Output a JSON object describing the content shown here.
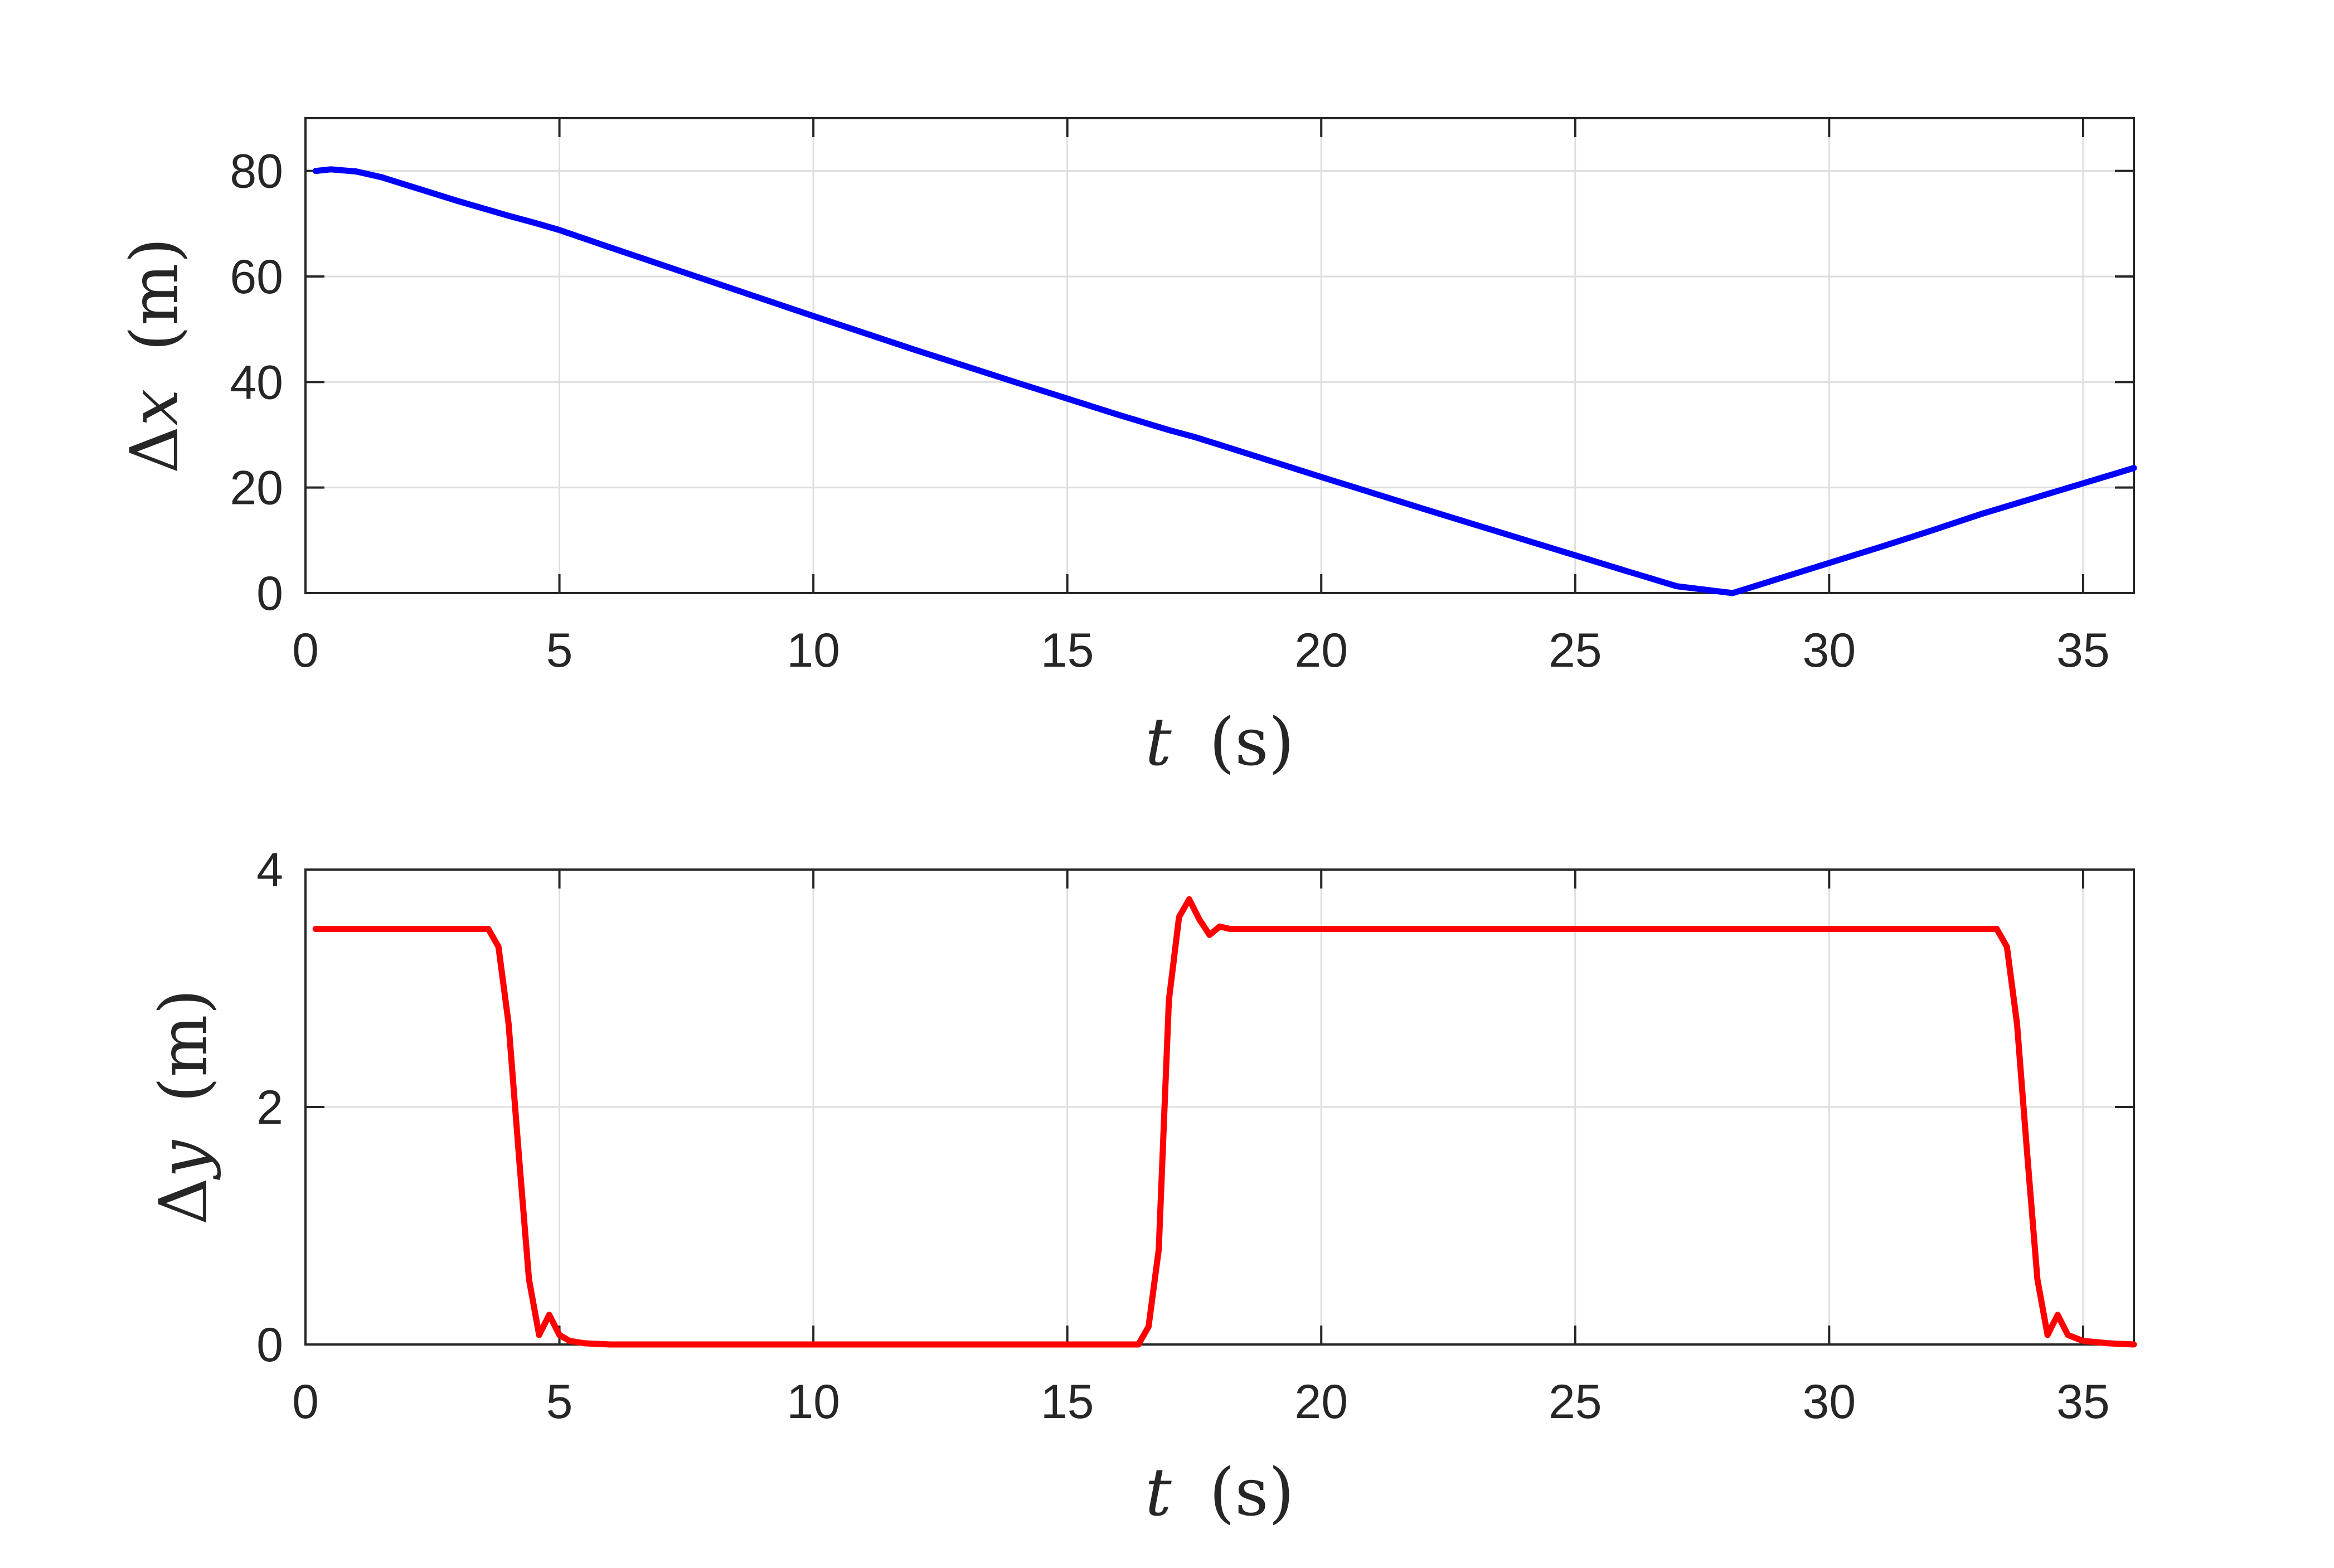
{
  "chart_data": [
    {
      "type": "line",
      "xlabel": {
        "var": "t",
        "unit": "(s)"
      },
      "ylabel": {
        "var": "x",
        "prefix": "Δ",
        "unit": "(m)"
      },
      "xlim": [
        0,
        36
      ],
      "ylim": [
        0,
        90
      ],
      "xticks": [
        "0",
        "5",
        "10",
        "15",
        "20",
        "25",
        "30",
        "35"
      ],
      "yticks": [
        "0",
        "20",
        "40",
        "60",
        "80"
      ],
      "grid": true,
      "series": [
        {
          "color": "#0000ff",
          "x": [
            0.2,
            0.5,
            1,
            1.5,
            2,
            3,
            4,
            4.5,
            5,
            6,
            8,
            10,
            12,
            14,
            16,
            17,
            17.5,
            18,
            20,
            22,
            24,
            26,
            27,
            28.1,
            29,
            30,
            31,
            32,
            33,
            34,
            35,
            36
          ],
          "y": [
            80,
            80.3,
            79.9,
            78.8,
            77.3,
            74.3,
            71.5,
            70.2,
            68.8,
            65.5,
            59,
            52.5,
            46.1,
            39.9,
            33.8,
            30.9,
            29.6,
            28.1,
            22,
            16,
            10.1,
            4.2,
            1.3,
            0,
            2.7,
            5.7,
            8.7,
            11.8,
            15,
            17.9,
            20.8,
            23.7
          ]
        }
      ]
    },
    {
      "type": "line",
      "xlabel": {
        "var": "t",
        "unit": "(s)"
      },
      "ylabel": {
        "var": "y",
        "prefix": "Δ",
        "unit": "(m)"
      },
      "xlim": [
        0,
        36
      ],
      "ylim": [
        0,
        4
      ],
      "xticks": [
        "0",
        "5",
        "10",
        "15",
        "20",
        "25",
        "30",
        "35"
      ],
      "yticks": [
        "0",
        "2",
        "4"
      ],
      "grid": true,
      "series": [
        {
          "color": "#ff0000",
          "x": [
            0.2,
            3.6,
            3.8,
            4.0,
            4.2,
            4.4,
            4.6,
            4.8,
            5.0,
            5.2,
            5.5,
            6.0,
            10,
            16.4,
            16.6,
            16.8,
            17.0,
            17.2,
            17.4,
            17.6,
            17.8,
            18.0,
            18.2,
            18.4,
            20,
            25,
            30,
            33.3,
            33.5,
            33.7,
            33.9,
            34.1,
            34.3,
            34.5,
            34.7,
            35.0,
            35.5,
            36.0
          ],
          "y": [
            3.5,
            3.5,
            3.35,
            2.7,
            1.6,
            0.55,
            0.08,
            0.25,
            0.08,
            0.03,
            0.01,
            0,
            0,
            0,
            0.15,
            0.8,
            2.9,
            3.6,
            3.75,
            3.58,
            3.45,
            3.52,
            3.5,
            3.5,
            3.5,
            3.5,
            3.5,
            3.5,
            3.35,
            2.7,
            1.6,
            0.55,
            0.08,
            0.25,
            0.08,
            0.03,
            0.01,
            0
          ]
        }
      ]
    }
  ]
}
